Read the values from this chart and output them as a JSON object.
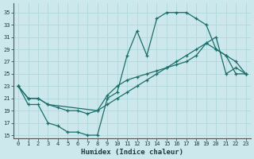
{
  "xlabel": "Humidex (Indice chaleur)",
  "bg_color": "#cce8ec",
  "line_color": "#1a6e6a",
  "grid_color": "#b0d8dc",
  "xlim": [
    -0.5,
    23.5
  ],
  "ylim": [
    15,
    36
  ],
  "yticks": [
    15,
    17,
    19,
    21,
    23,
    25,
    27,
    29,
    31,
    33,
    35
  ],
  "xticks": [
    0,
    1,
    2,
    3,
    4,
    5,
    6,
    7,
    8,
    9,
    10,
    11,
    12,
    13,
    14,
    15,
    16,
    17,
    18,
    19,
    20,
    21,
    22,
    23
  ],
  "curve1_x": [
    0,
    1,
    2,
    3,
    4,
    5,
    6,
    7,
    8,
    9,
    10,
    11,
    12,
    13,
    14,
    15,
    16,
    17,
    18,
    19,
    20,
    21,
    22,
    23
  ],
  "curve1_y": [
    23,
    20,
    20,
    17,
    16.5,
    15.5,
    15.5,
    15,
    15,
    21,
    22,
    28,
    32,
    28,
    34,
    35,
    35,
    35,
    34,
    33,
    29,
    28,
    25,
    25
  ],
  "curve2_x": [
    0,
    1,
    2,
    3,
    4,
    5,
    6,
    7,
    8,
    9,
    10,
    11,
    12,
    13,
    14,
    15,
    16,
    17,
    18,
    19,
    20,
    21,
    22,
    23
  ],
  "curve2_y": [
    23,
    21,
    21,
    20,
    19.5,
    19,
    19,
    18.5,
    19,
    20,
    21,
    22,
    23,
    24,
    25,
    26,
    27,
    28,
    29,
    30,
    31,
    25,
    26,
    25
  ],
  "curve3_x": [
    0,
    1,
    2,
    3,
    8,
    9,
    10,
    11,
    12,
    13,
    14,
    15,
    16,
    17,
    18,
    19,
    20,
    21,
    22,
    23
  ],
  "curve3_y": [
    23,
    21,
    21,
    20,
    19,
    21.5,
    23,
    24,
    24.5,
    25,
    25.5,
    26,
    26.5,
    27,
    28,
    30,
    29,
    28,
    27,
    25
  ]
}
